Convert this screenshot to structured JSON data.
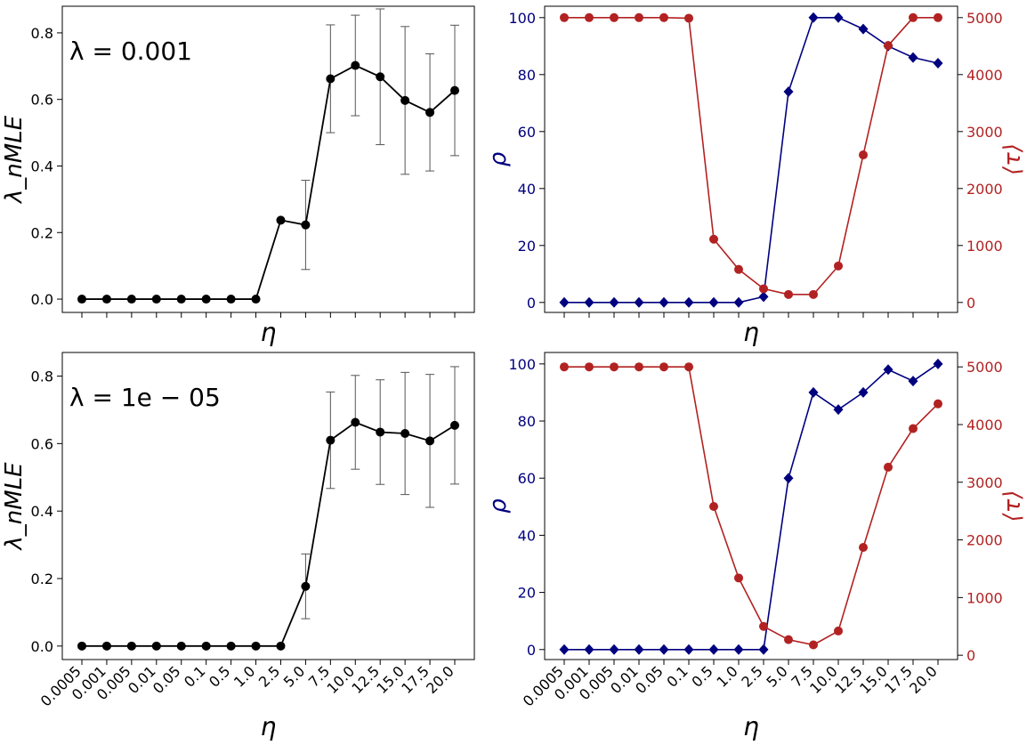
{
  "x_categories": [
    "0.0005",
    "0.001",
    "0.005",
    "0.01",
    "0.05",
    "0.1",
    "0.5",
    "1.0",
    "2.5",
    "5.0",
    "7.5",
    "10.0",
    "12.5",
    "15.0",
    "17.5",
    "20.0"
  ],
  "colors": {
    "lambda": "#000000",
    "rho": "#00007f",
    "tau": "#b22222"
  },
  "chart_data": [
    {
      "type": "line",
      "panel": "top-left",
      "annotation": "λ = 0.001",
      "xlabel": "η",
      "ylabel": "λ_nMLE",
      "ylim": [
        -0.04,
        0.88
      ],
      "yticks": [
        0.0,
        0.2,
        0.4,
        0.6,
        0.8
      ],
      "show_xticklabels": false,
      "series": [
        {
          "values": [
            0,
            0,
            0,
            0,
            0,
            0,
            0,
            0,
            0.237,
            0.223,
            0.662,
            0.702,
            0.668,
            0.597,
            0.561,
            0.627
          ],
          "error": [
            0,
            0,
            0,
            0,
            0,
            0,
            0,
            0,
            0,
            0.134,
            0.162,
            0.151,
            0.204,
            0.222,
            0.176,
            0.196
          ]
        }
      ]
    },
    {
      "type": "line",
      "panel": "top-right",
      "xlabel": "η",
      "ylabel": "ρ",
      "ylabel_right": "⟨τ⟩",
      "ylim": [
        -3.5,
        104
      ],
      "yticks": [
        0,
        20,
        40,
        60,
        80,
        100
      ],
      "ylim_right": [
        -175,
        5200
      ],
      "yticks_right": [
        0,
        1000,
        2000,
        3000,
        4000,
        5000
      ],
      "show_xticklabels": false,
      "series": [
        {
          "axis": "left",
          "marker": "diamond",
          "values": [
            0,
            0,
            0,
            0,
            0,
            0,
            0,
            0,
            2,
            74,
            100,
            100,
            96,
            90,
            86,
            84
          ]
        },
        {
          "axis": "right",
          "marker": "circle",
          "values": [
            5000,
            5000,
            5000,
            5000,
            5000,
            4990,
            1110,
            580,
            240,
            140,
            140,
            640,
            2590,
            4510,
            5000,
            5000
          ]
        }
      ]
    },
    {
      "type": "line",
      "panel": "bottom-left",
      "annotation": "λ = 1e − 05",
      "xlabel": "η",
      "ylabel": "λ_nMLE",
      "ylim": [
        -0.04,
        0.87
      ],
      "yticks": [
        0.0,
        0.2,
        0.4,
        0.6,
        0.8
      ],
      "show_xticklabels": true,
      "series": [
        {
          "values": [
            0,
            0,
            0,
            0,
            0,
            0,
            0,
            0,
            0,
            0.177,
            0.61,
            0.663,
            0.634,
            0.63,
            0.608,
            0.654
          ],
          "error": [
            0,
            0,
            0,
            0,
            0,
            0,
            0,
            0,
            0,
            0.096,
            0.143,
            0.139,
            0.155,
            0.181,
            0.197,
            0.174
          ]
        }
      ]
    },
    {
      "type": "line",
      "panel": "bottom-right",
      "xlabel": "η",
      "ylabel": "ρ",
      "ylabel_right": "⟨τ⟩",
      "ylim": [
        -3.5,
        104
      ],
      "yticks": [
        0,
        20,
        40,
        60,
        80,
        100
      ],
      "ylim_right": [
        -75,
        5250
      ],
      "yticks_right": [
        0,
        1000,
        2000,
        3000,
        4000,
        5000
      ],
      "show_xticklabels": true,
      "series": [
        {
          "axis": "left",
          "marker": "diamond",
          "values": [
            0,
            0,
            0,
            0,
            0,
            0,
            0,
            0,
            0,
            60,
            90,
            84,
            90,
            98,
            94,
            100
          ]
        },
        {
          "axis": "right",
          "marker": "circle",
          "values": [
            5000,
            5000,
            5000,
            5000,
            5000,
            5000,
            2580,
            1340,
            500,
            270,
            180,
            420,
            1870,
            3260,
            3930,
            4360
          ]
        }
      ]
    }
  ]
}
